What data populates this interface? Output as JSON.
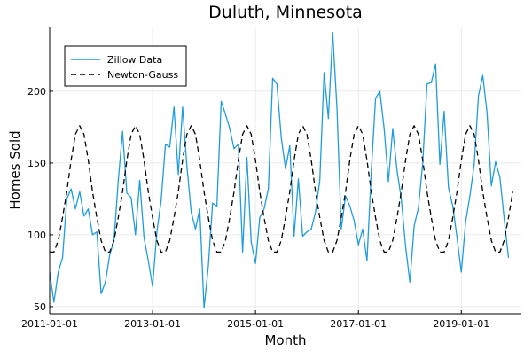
{
  "chart_data": {
    "type": "line",
    "title": "Duluth, Minnesota",
    "xlabel": "Month",
    "ylabel": "Homes Sold",
    "xlim": [
      "2011-01-01",
      "2020-03-01"
    ],
    "ylim": [
      45,
      245
    ],
    "x_ticks": [
      "2011-01-01",
      "2013-01-01",
      "2015-01-01",
      "2017-01-01",
      "2019-01-01"
    ],
    "y_ticks": [
      50,
      100,
      150,
      200
    ],
    "grid": true,
    "legend": "top-left",
    "x_start": "2011-01-01",
    "x_step": "1 month",
    "series": [
      {
        "name": "Zillow Data",
        "color": "#1f9cde",
        "style": "solid",
        "values": [
          74,
          53,
          74,
          84,
          125,
          132,
          118,
          130,
          113,
          118,
          100,
          102,
          59,
          67,
          86,
          96,
          138,
          172,
          129,
          126,
          100,
          138,
          98,
          82,
          64,
          102,
          124,
          163,
          161,
          189,
          142,
          189,
          148,
          116,
          104,
          118,
          49,
          78,
          122,
          120,
          193,
          184,
          174,
          160,
          163,
          88,
          154,
          95,
          80,
          112,
          118,
          132,
          209,
          205,
          168,
          146,
          162,
          99,
          139,
          99,
          102,
          104,
          116,
          138,
          213,
          181,
          241,
          188,
          104,
          127,
          120,
          110,
          93,
          104,
          82,
          144,
          195,
          200,
          174,
          137,
          174,
          145,
          125,
          92,
          67,
          106,
          119,
          150,
          205,
          206,
          219,
          149,
          186,
          133,
          120,
          98,
          74,
          109,
          127,
          149,
          197,
          211,
          185,
          134,
          151,
          140,
          111,
          84
        ]
      },
      {
        "name": "Newton-Gauss",
        "color": "#000000",
        "style": "dashed",
        "values": [
          88,
          88,
          96,
          112,
          130,
          152,
          170,
          176,
          170,
          152,
          130,
          112,
          96,
          88,
          88,
          96,
          112,
          130,
          152,
          170,
          176,
          170,
          152,
          130,
          112,
          96,
          88,
          88,
          96,
          112,
          130,
          152,
          170,
          176,
          170,
          152,
          130,
          112,
          96,
          88,
          88,
          96,
          112,
          130,
          152,
          170,
          176,
          170,
          152,
          130,
          112,
          96,
          88,
          88,
          96,
          112,
          130,
          152,
          170,
          176,
          170,
          152,
          130,
          112,
          96,
          88,
          88,
          96,
          112,
          130,
          152,
          170,
          176,
          170,
          152,
          130,
          112,
          96,
          88,
          88,
          96,
          112,
          130,
          152,
          170,
          176,
          170,
          152,
          130,
          112,
          96,
          88,
          88,
          96,
          112,
          130,
          152,
          170,
          176,
          170,
          152,
          130,
          112,
          96,
          88,
          88,
          96,
          112,
          130
        ]
      }
    ]
  }
}
